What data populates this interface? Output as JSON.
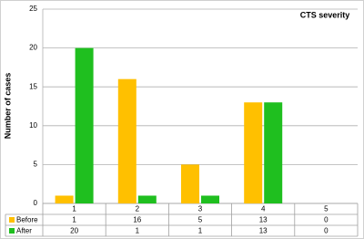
{
  "chart_data": {
    "type": "bar",
    "title": "CTS severity",
    "y_label": "Number of cases",
    "categories": [
      "1",
      "2",
      "3",
      "4",
      "5"
    ],
    "series": [
      {
        "name": "Before",
        "color": "#ffc000",
        "values": [
          1,
          16,
          5,
          13,
          0
        ]
      },
      {
        "name": "After",
        "color": "#1fbf1f",
        "values": [
          20,
          1,
          1,
          13,
          0
        ]
      }
    ],
    "ylim": [
      0,
      25
    ],
    "yticks": [
      0,
      5,
      10,
      15,
      20,
      25
    ],
    "grid": true,
    "data_table": true
  }
}
